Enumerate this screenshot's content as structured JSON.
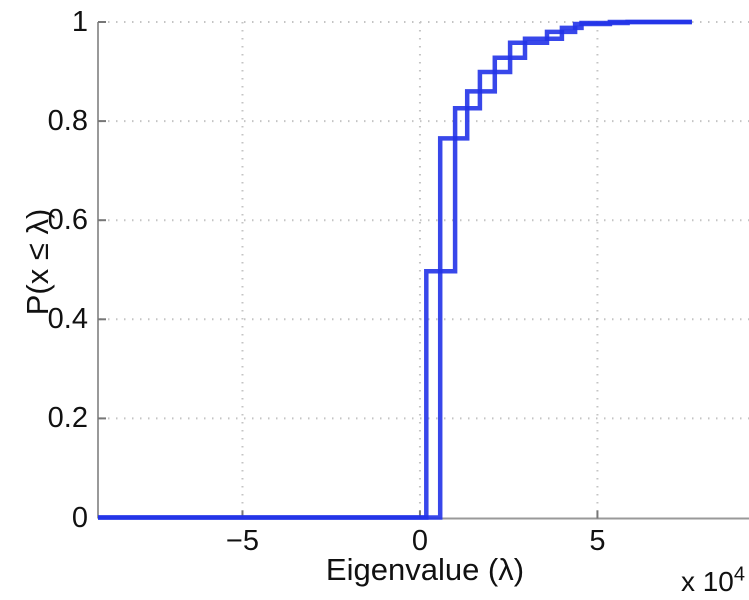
{
  "figure": {
    "xlabel": "Eigenvalue (λ)",
    "ylabel": "P(x ≤ λ)",
    "axis_multiplier": {
      "prefix": "x 10",
      "exponent": "4"
    }
  },
  "chart_data": {
    "type": "line",
    "subtype": "step-ecdf",
    "title": "",
    "xlabel": "Eigenvalue (λ)",
    "ylabel": "P(x ≤ λ)",
    "x_unit_multiplier": "1e4",
    "xlim": [
      -90700,
      92700
    ],
    "ylim": [
      0,
      1
    ],
    "grid": "dotted",
    "legend_position": "none",
    "colors": {
      "line": "#2233e8",
      "axis": "#999999",
      "gridline": "#c4c4c4",
      "text": "#111111"
    },
    "x_ticks": [
      {
        "value": -50000,
        "label": "−5"
      },
      {
        "value": 0,
        "label": "0"
      },
      {
        "value": 50000,
        "label": "5"
      }
    ],
    "y_ticks": [
      {
        "value": 0,
        "label": "0"
      },
      {
        "value": 0.2,
        "label": "0.2"
      },
      {
        "value": 0.4,
        "label": "0.4"
      },
      {
        "value": 0.6,
        "label": "0.6"
      },
      {
        "value": 0.8,
        "label": "0.8"
      },
      {
        "value": 1,
        "label": "1"
      }
    ],
    "series": [
      {
        "name": "ecdf-curve-1",
        "start_x": -90700,
        "end_x": 76600,
        "steps": [
          [
            1800,
            0.497
          ],
          [
            9900,
            0.826
          ],
          [
            16900,
            0.899
          ],
          [
            25400,
            0.958
          ],
          [
            35800,
            0.98
          ],
          [
            43700,
            0.996
          ],
          [
            53500,
            1.0
          ]
        ]
      },
      {
        "name": "ecdf-curve-2",
        "start_x": -90700,
        "end_x": 76600,
        "steps": [
          [
            5700,
            0.765
          ],
          [
            13300,
            0.86
          ],
          [
            21100,
            0.928
          ],
          [
            29600,
            0.966
          ],
          [
            40000,
            0.988
          ],
          [
            45500,
            0.998
          ],
          [
            58500,
            1.0
          ]
        ]
      }
    ]
  }
}
